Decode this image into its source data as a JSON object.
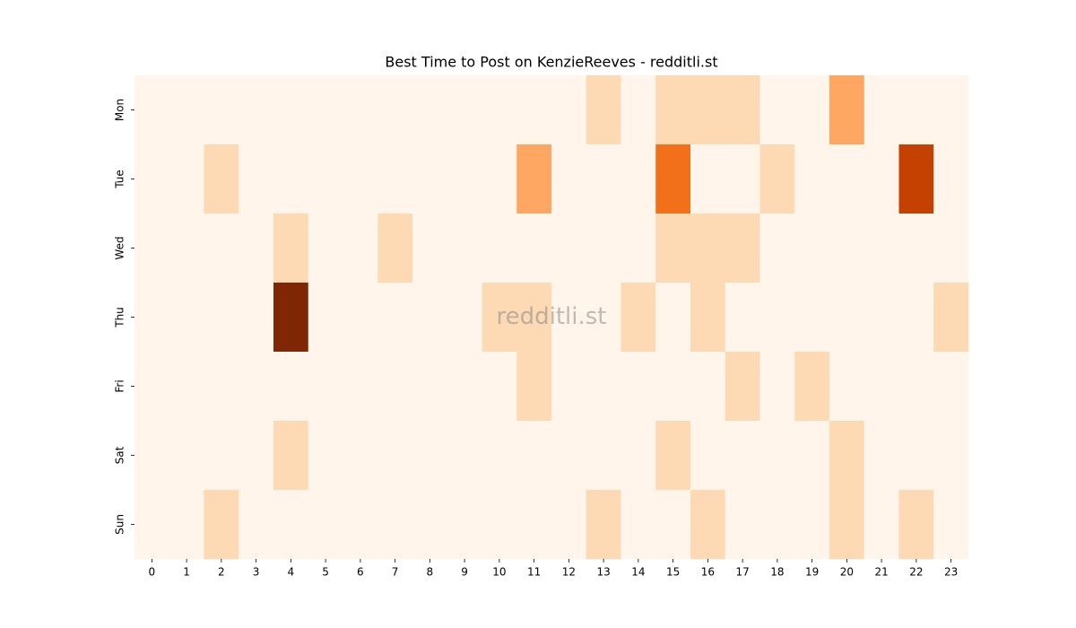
{
  "chart_data": {
    "type": "heatmap",
    "title": "Best Time to Post on KenzieReeves - redditli.st",
    "watermark": "redditli.st",
    "colormap": "Oranges",
    "categories": [
      0,
      1,
      2,
      3,
      4,
      5,
      6,
      7,
      8,
      9,
      10,
      11,
      12,
      13,
      14,
      15,
      16,
      17,
      18,
      19,
      20,
      21,
      22,
      23
    ],
    "rows": [
      "Mon",
      "Tue",
      "Wed",
      "Thu",
      "Fri",
      "Sat",
      "Sun"
    ],
    "values": [
      [
        0,
        0,
        0,
        0,
        0,
        0,
        0,
        0,
        0,
        0,
        0,
        0,
        0,
        1,
        0,
        1,
        1,
        1,
        0,
        0,
        2,
        0,
        0,
        0
      ],
      [
        0,
        0,
        1,
        0,
        0,
        0,
        0,
        0,
        0,
        0,
        0,
        2,
        0,
        0,
        0,
        3,
        0,
        0,
        1,
        0,
        0,
        0,
        4,
        0
      ],
      [
        0,
        0,
        0,
        0,
        1,
        0,
        0,
        1,
        0,
        0,
        0,
        0,
        0,
        0,
        0,
        1,
        1,
        1,
        0,
        0,
        0,
        0,
        0,
        0
      ],
      [
        0,
        0,
        0,
        0,
        5,
        0,
        0,
        0,
        0,
        0,
        1,
        1,
        0,
        0,
        1,
        0,
        1,
        0,
        0,
        0,
        0,
        0,
        0,
        1
      ],
      [
        0,
        0,
        0,
        0,
        0,
        0,
        0,
        0,
        0,
        0,
        0,
        1,
        0,
        0,
        0,
        0,
        0,
        1,
        0,
        1,
        0,
        0,
        0,
        0
      ],
      [
        0,
        0,
        0,
        0,
        1,
        0,
        0,
        0,
        0,
        0,
        0,
        0,
        0,
        0,
        0,
        1,
        0,
        0,
        0,
        0,
        1,
        0,
        0,
        0
      ],
      [
        0,
        0,
        1,
        0,
        0,
        0,
        0,
        0,
        0,
        0,
        0,
        0,
        0,
        1,
        0,
        0,
        1,
        0,
        0,
        0,
        1,
        0,
        1,
        0
      ]
    ]
  }
}
